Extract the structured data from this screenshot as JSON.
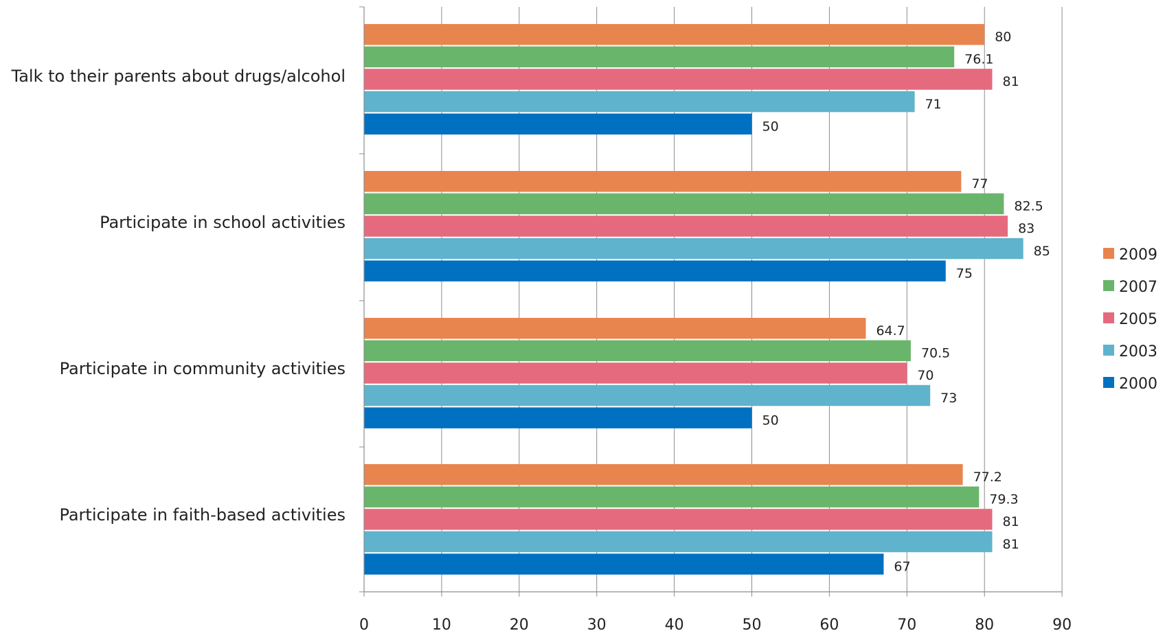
{
  "chart_data": {
    "type": "bar",
    "orientation": "horizontal",
    "title": "",
    "xlabel": "",
    "ylabel": "",
    "xlim": [
      0,
      90
    ],
    "ticks": [
      "0",
      "10",
      "20",
      "30",
      "40",
      "50",
      "60",
      "70",
      "80",
      "90"
    ],
    "grid": "vertical",
    "legend_position": "right",
    "categories": [
      "Talk to their parents about drugs/alcohol",
      "Participate in school activities",
      "Participate in community activities",
      "Participate in faith-based activities"
    ],
    "series": [
      {
        "name": "2009",
        "color": "#e8854f",
        "values": [
          80,
          77,
          64.7,
          77.2
        ],
        "labels": [
          "80",
          "77",
          "64.7",
          "77.2"
        ]
      },
      {
        "name": "2007",
        "color": "#6ab56c",
        "values": [
          76.1,
          82.5,
          70.5,
          79.3
        ],
        "labels": [
          "76.1",
          "82.5",
          "70.5",
          "79.3"
        ]
      },
      {
        "name": "2005",
        "color": "#e66a7d",
        "values": [
          81,
          83,
          70,
          81
        ],
        "labels": [
          "81",
          "83",
          "70",
          "81"
        ]
      },
      {
        "name": "2003",
        "color": "#5fb3cc",
        "values": [
          71,
          85,
          73,
          81
        ],
        "labels": [
          "71",
          "85",
          "73",
          "81"
        ]
      },
      {
        "name": "2000",
        "color": "#0071c1",
        "values": [
          50,
          75,
          50,
          67
        ],
        "labels": [
          "50",
          "75",
          "50",
          "67"
        ]
      }
    ]
  }
}
